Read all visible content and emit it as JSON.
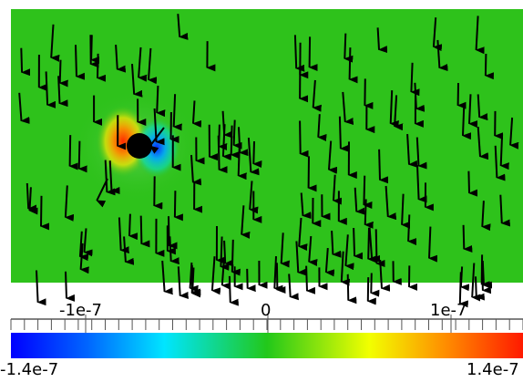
{
  "view": {
    "background_color": "#ffffff",
    "field_color": "#2ec21b",
    "arrow_color": "#000000"
  },
  "scalar_bar": {
    "colormap": "blue-cyan-green-yellow-red",
    "range": [
      -1.4e-07,
      1.4e-07
    ],
    "major_ticks": [
      "-1e-7",
      "0",
      "1e-7"
    ],
    "min_label": "-1.4e-7",
    "max_label": "1.4e-7"
  },
  "obstacle": {
    "shape": "circle",
    "color": "#000000"
  }
}
